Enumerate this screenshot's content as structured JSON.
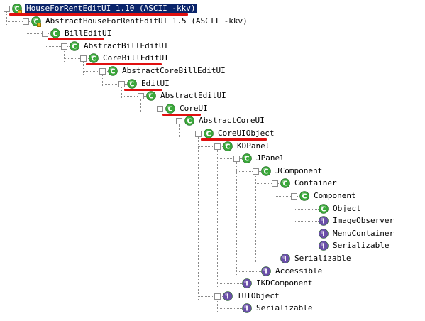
{
  "colors": {
    "class_icon": "#3aa83a",
    "interface_icon": "#6a4fa8",
    "abstract_badge": "#2e8b2e",
    "selection": "#0a246a",
    "underline": "#e01010"
  },
  "icons": {
    "class": "class-c-icon",
    "interface": "interface-i-icon",
    "abstract_marker": "A",
    "final_marker": "lock-icon"
  },
  "tree": [
    {
      "label": "HouseForRentEditUI",
      "version": "1.10",
      "encoding": "(ASCII -kkv)",
      "depth": 0,
      "kind": "class",
      "abstract": false,
      "lock": true,
      "selected": true,
      "underlined": true,
      "toggle": "-"
    },
    {
      "label": "AbstractHouseForRentEditUI",
      "version": "1.5",
      "encoding": "(ASCII -kkv)",
      "depth": 1,
      "kind": "class",
      "abstract": true,
      "lock": true,
      "underlined": false,
      "toggle": "-"
    },
    {
      "label": "BillEditUI",
      "depth": 2,
      "kind": "class",
      "abstract": true,
      "underlined": true,
      "toggle": "-"
    },
    {
      "label": "AbstractBillEditUI",
      "depth": 3,
      "kind": "class",
      "abstract": true,
      "underlined": false,
      "toggle": "-"
    },
    {
      "label": "CoreBillEditUI",
      "depth": 4,
      "kind": "class",
      "abstract": true,
      "underlined": true,
      "toggle": "-"
    },
    {
      "label": "AbstractCoreBillEditUI",
      "depth": 5,
      "kind": "class",
      "abstract": true,
      "underlined": false,
      "toggle": "-"
    },
    {
      "label": "EditUI",
      "depth": 6,
      "kind": "class",
      "abstract": true,
      "underlined": true,
      "toggle": "-"
    },
    {
      "label": "AbstractEditUI",
      "depth": 7,
      "kind": "class",
      "abstract": true,
      "underlined": false,
      "toggle": "-"
    },
    {
      "label": "CoreUI",
      "depth": 8,
      "kind": "class",
      "abstract": false,
      "underlined": true,
      "toggle": "-"
    },
    {
      "label": "AbstractCoreUI",
      "depth": 9,
      "kind": "class",
      "abstract": true,
      "underlined": false,
      "toggle": "-"
    },
    {
      "label": "CoreUIObject",
      "depth": 10,
      "kind": "class",
      "abstract": true,
      "underlined": true,
      "toggle": "-"
    },
    {
      "label": "KDPanel",
      "depth": 11,
      "kind": "class",
      "abstract": false,
      "underlined": false,
      "toggle": "-"
    },
    {
      "label": "JPanel",
      "depth": 12,
      "kind": "class",
      "abstract": false,
      "underlined": false,
      "toggle": "-"
    },
    {
      "label": "JComponent",
      "depth": 13,
      "kind": "class",
      "abstract": true,
      "underlined": false,
      "toggle": "-"
    },
    {
      "label": "Container",
      "depth": 14,
      "kind": "class",
      "abstract": false,
      "underlined": false,
      "toggle": "-"
    },
    {
      "label": "Component",
      "depth": 15,
      "kind": "class",
      "abstract": true,
      "underlined": false,
      "toggle": "-"
    },
    {
      "label": "Object",
      "depth": 16,
      "kind": "class",
      "abstract": false,
      "underlined": false,
      "toggle": ""
    },
    {
      "label": "ImageObserver",
      "depth": 16,
      "kind": "interface",
      "abstract": false,
      "underlined": false,
      "toggle": ""
    },
    {
      "label": "MenuContainer",
      "depth": 16,
      "kind": "interface",
      "abstract": false,
      "underlined": false,
      "toggle": ""
    },
    {
      "label": "Serializable",
      "depth": 16,
      "kind": "interface",
      "abstract": false,
      "underlined": false,
      "toggle": ""
    },
    {
      "label": "Serializable",
      "depth": 14,
      "kind": "interface",
      "abstract": false,
      "underlined": false,
      "toggle": ""
    },
    {
      "label": "Accessible",
      "depth": 13,
      "kind": "interface",
      "abstract": false,
      "underlined": false,
      "toggle": ""
    },
    {
      "label": "IKDComponent",
      "depth": 12,
      "kind": "interface",
      "abstract": false,
      "underlined": false,
      "toggle": ""
    },
    {
      "label": "IUIObject",
      "depth": 11,
      "kind": "interface",
      "abstract": false,
      "underlined": false,
      "toggle": "-"
    },
    {
      "label": "Serializable",
      "depth": 12,
      "kind": "interface",
      "abstract": false,
      "underlined": false,
      "toggle": ""
    }
  ]
}
